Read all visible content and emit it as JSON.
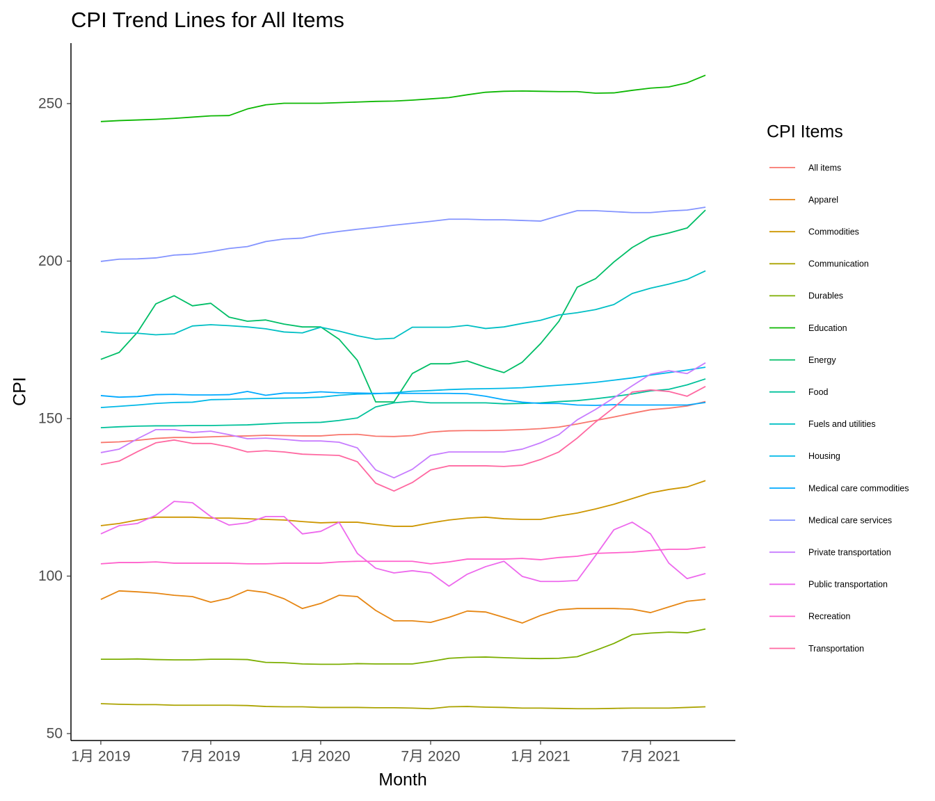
{
  "chart_data": {
    "type": "line",
    "title": "CPI Trend Lines for All Items",
    "x_label": "Month",
    "y_label": "CPI",
    "legend_title": "CPI Items",
    "legend_position": "right",
    "grid": false,
    "categories": [
      "1月 2019",
      null,
      null,
      null,
      null,
      null,
      "7月 2019",
      null,
      null,
      null,
      null,
      null,
      "1月 2020",
      null,
      null,
      null,
      null,
      null,
      "7月 2020",
      null,
      null,
      null,
      null,
      null,
      "1月 2021",
      null,
      null,
      null,
      null,
      null,
      "7月 2021",
      null,
      null,
      null
    ],
    "ylim": [
      47.8,
      269.2
    ],
    "yticks": [
      50,
      100,
      150,
      200,
      250
    ],
    "series": [
      {
        "name": "All items",
        "color": "#F8766D",
        "values": [
          142.4,
          142.6,
          143.1,
          143.7,
          144,
          144,
          144.2,
          144.4,
          144.5,
          144.7,
          144.6,
          144.5,
          144.5,
          144.9,
          145,
          144.4,
          144.3,
          144.6,
          145.7,
          146.1,
          146.2,
          146.2,
          146.3,
          146.5,
          146.8,
          147.3,
          148.3,
          149.4,
          150.5,
          151.7,
          152.8,
          153.3,
          154,
          155.4
        ]
      },
      {
        "name": "Apparel",
        "color": "#E68613",
        "values": [
          92.6,
          95.3,
          95.0,
          94.6,
          93.9,
          93.5,
          91.7,
          93,
          95.5,
          94.8,
          92.8,
          89.7,
          91.3,
          93.9,
          93.5,
          89.1,
          85.8,
          85.8,
          85.3,
          86.9,
          88.9,
          88.6,
          86.9,
          85.1,
          87.5,
          89.3,
          89.7,
          89.7,
          89.7,
          89.5,
          88.4,
          90.2,
          92,
          92.6
        ]
      },
      {
        "name": "Commodities",
        "color": "#CD9600",
        "values": [
          116,
          116.7,
          117.8,
          118.7,
          118.7,
          118.7,
          118.4,
          118.4,
          118.2,
          118,
          117.8,
          117.3,
          116.9,
          117.1,
          117.1,
          116.4,
          115.8,
          115.8,
          116.9,
          117.8,
          118.4,
          118.7,
          118.2,
          118,
          118,
          119.1,
          120,
          121.3,
          122.8,
          124.6,
          126.4,
          127.5,
          128.3,
          130.3
        ]
      },
      {
        "name": "Communication",
        "color": "#ABA300",
        "values": [
          59.5,
          59.3,
          59.2,
          59.2,
          59.0,
          59.0,
          59.0,
          59.0,
          58.9,
          58.6,
          58.5,
          58.5,
          58.3,
          58.3,
          58.3,
          58.2,
          58.2,
          58.1,
          57.9,
          58.5,
          58.6,
          58.4,
          58.3,
          58.1,
          58.1,
          58.0,
          57.9,
          57.9,
          58.0,
          58.1,
          58.1,
          58.1,
          58.3,
          58.5
        ]
      },
      {
        "name": "Durables",
        "color": "#7CAE00",
        "values": [
          73.6,
          73.6,
          73.7,
          73.5,
          73.4,
          73.4,
          73.6,
          73.6,
          73.5,
          72.6,
          72.5,
          72.1,
          72,
          72,
          72.2,
          72.1,
          72.1,
          72.1,
          72.9,
          73.9,
          74.2,
          74.3,
          74.1,
          73.9,
          73.8,
          73.9,
          74.4,
          76.4,
          78.6,
          81.4,
          81.9,
          82.2,
          82,
          83.2
        ]
      },
      {
        "name": "Education",
        "color": "#0CB702",
        "values": [
          244.3,
          244.6,
          244.8,
          245,
          245.3,
          245.7,
          246.1,
          246.2,
          248.3,
          249.6,
          250.1,
          250.1,
          250.1,
          250.3,
          250.5,
          250.7,
          250.8,
          251.1,
          251.5,
          251.9,
          252.8,
          253.6,
          253.9,
          254.0,
          253.9,
          253.8,
          253.8,
          253.3,
          253.4,
          254.2,
          254.9,
          255.3,
          256.6,
          259.0
        ]
      },
      {
        "name": "Energy",
        "color": "#00BE67",
        "values": [
          168.8,
          171,
          177.4,
          186.4,
          189,
          185.8,
          186.6,
          182.2,
          180.9,
          181.3,
          180,
          179.1,
          179.1,
          175.2,
          168.5,
          155.3,
          155.3,
          164.3,
          167.4,
          167.4,
          168.3,
          166.3,
          164.6,
          167.9,
          173.8,
          180.9,
          191.7,
          194.4,
          199.7,
          204.3,
          207.6,
          208.9,
          210.5,
          216.2
        ]
      },
      {
        "name": "Food",
        "color": "#00C19A",
        "values": [
          147.1,
          147.4,
          147.6,
          147.7,
          147.7,
          147.8,
          147.8,
          147.9,
          148.0,
          148.3,
          148.6,
          148.7,
          148.8,
          149.4,
          150.2,
          153.7,
          155.0,
          155.5,
          155.0,
          155.0,
          155.0,
          155.0,
          154.7,
          154.8,
          155.0,
          155.4,
          155.7,
          156.3,
          157.0,
          157.8,
          158.8,
          159.3,
          160.7,
          162.6
        ]
      },
      {
        "name": "Fuels and utilities",
        "color": "#00BFC4",
        "values": [
          177.6,
          177.1,
          177.1,
          176.6,
          176.9,
          179.4,
          179.8,
          179.5,
          179.1,
          178.5,
          177.5,
          177.2,
          179.0,
          177.8,
          176.3,
          175.2,
          175.5,
          179,
          179,
          179,
          179.6,
          178.6,
          179.1,
          180.2,
          181.2,
          182.9,
          183.6,
          184.6,
          186.2,
          189.7,
          191.4,
          192.7,
          194.2,
          196.9
        ]
      },
      {
        "name": "Housing",
        "color": "#00B8E7",
        "values": [
          153.5,
          153.9,
          154.3,
          154.8,
          155.1,
          155.2,
          156,
          156.1,
          156.3,
          156.4,
          156.5,
          156.6,
          156.8,
          157.4,
          157.8,
          157.9,
          158.2,
          158.7,
          158.9,
          159.2,
          159.4,
          159.5,
          159.6,
          159.8,
          160.2,
          160.6,
          161,
          161.5,
          162.2,
          162.9,
          163.8,
          164.6,
          165.4,
          166.3
        ]
      },
      {
        "name": "Medical care commodities",
        "color": "#00A9FF",
        "values": [
          157.3,
          156.8,
          157,
          157.6,
          157.7,
          157.5,
          157.5,
          157.6,
          158.6,
          157.4,
          158.1,
          158.1,
          158.5,
          158.2,
          158.1,
          158,
          158,
          158,
          158,
          158,
          157.9,
          157.1,
          156,
          155.2,
          154.8,
          154.8,
          154.3,
          154.2,
          154.4,
          154.3,
          154.3,
          154.3,
          154.3,
          155.1
        ]
      },
      {
        "name": "Medical care services",
        "color": "#8494FF",
        "values": [
          199.9,
          200.6,
          200.7,
          201,
          201.9,
          202.2,
          203,
          204,
          204.6,
          206.2,
          207,
          207.3,
          208.6,
          209.4,
          210.1,
          210.7,
          211.4,
          212,
          212.6,
          213.3,
          213.3,
          213.1,
          213.1,
          212.9,
          212.7,
          214.4,
          216,
          216,
          215.7,
          215.4,
          215.4,
          215.9,
          216.2,
          217.1
        ]
      },
      {
        "name": "Private transportation",
        "color": "#C77CFF",
        "values": [
          139.2,
          140.3,
          143.6,
          146.5,
          146.5,
          145.6,
          146,
          144.9,
          143.6,
          143.8,
          143.4,
          142.9,
          142.9,
          142.5,
          140.7,
          133.7,
          131.2,
          133.9,
          138.3,
          139.4,
          139.4,
          139.4,
          139.4,
          140.3,
          142.3,
          144.9,
          149.6,
          152.9,
          156.6,
          160.4,
          164.1,
          165.2,
          164.3,
          167.7
        ]
      },
      {
        "name": "Public transportation",
        "color": "#ED68ED",
        "values": [
          113.4,
          116,
          116.7,
          119.3,
          123.7,
          123.3,
          118.9,
          116.2,
          116.9,
          118.9,
          118.9,
          113.4,
          114.2,
          117.1,
          107.2,
          102.5,
          101,
          101.7,
          101,
          96.8,
          100.6,
          103,
          104.7,
          99.9,
          98.3,
          98.3,
          98.6,
          106.5,
          114.7,
          117.1,
          113.4,
          104.1,
          99.2,
          100.8
        ]
      },
      {
        "name": "Recreation",
        "color": "#FF61CC",
        "values": [
          103.9,
          104.3,
          104.3,
          104.5,
          104.1,
          104.1,
          104.1,
          104.1,
          103.9,
          103.9,
          104.1,
          104.1,
          104.1,
          104.5,
          104.7,
          104.7,
          104.7,
          104.7,
          103.9,
          104.5,
          105.4,
          105.4,
          105.4,
          105.6,
          105.2,
          105.9,
          106.3,
          107.2,
          107.4,
          107.6,
          108.1,
          108.5,
          108.5,
          109.2
        ]
      },
      {
        "name": "Transportation",
        "color": "#FF68A1",
        "values": [
          135.4,
          136.5,
          139.5,
          142.3,
          143.2,
          142.1,
          142.1,
          141,
          139.4,
          139.8,
          139.4,
          138.7,
          138.5,
          138.3,
          136.3,
          129.5,
          127,
          129.7,
          133.7,
          135,
          135,
          135,
          134.8,
          135.2,
          137,
          139.4,
          143.8,
          148.9,
          153.5,
          158.4,
          159.1,
          158.6,
          157.1,
          160.2
        ]
      }
    ]
  }
}
